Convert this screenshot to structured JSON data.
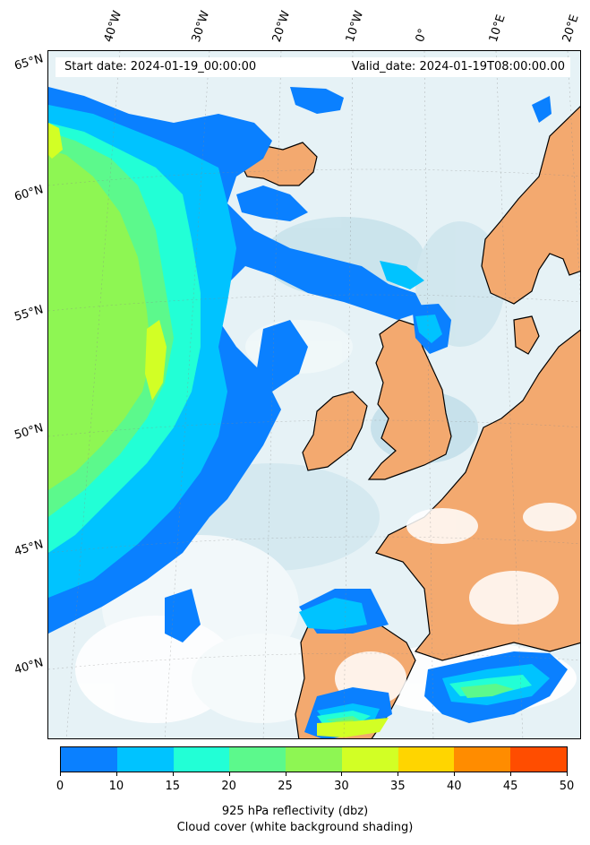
{
  "header": {
    "start_date": "Start date: 2024-01-19_00:00:00",
    "valid_date": "Valid_date: 2024-01-19T08:00:00.00"
  },
  "longitude_labels": [
    "40°W",
    "30°W",
    "20°W",
    "10°W",
    "0°",
    "10°E",
    "20°E"
  ],
  "latitude_labels": [
    "65°N",
    "60°N",
    "55°N",
    "50°N",
    "45°N",
    "40°N"
  ],
  "colorbar": {
    "ticks": [
      "0",
      "10",
      "15",
      "20",
      "25",
      "30",
      "35",
      "40",
      "45",
      "50"
    ],
    "colors": [
      "#0a80ff",
      "#00c3ff",
      "#22ffd6",
      "#5cf98c",
      "#8ef653",
      "#d2ff25",
      "#ffd500",
      "#ff8c00",
      "#ff4d00"
    ],
    "label": "925 hPa reflectivity (dbz)",
    "sublabel": "Cloud cover (white background shading)"
  },
  "map_colors": {
    "ocean": "#e6f2f6",
    "land": "#f3a96f",
    "cloud_cover": "#ffffff",
    "coastline": "#000000"
  }
}
